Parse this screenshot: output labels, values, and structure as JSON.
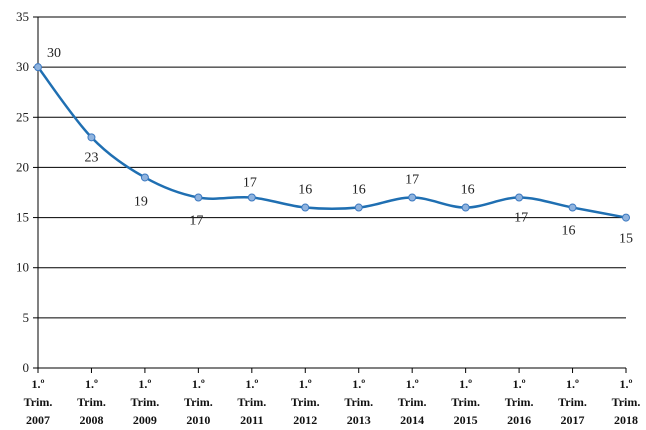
{
  "chart_data": {
    "type": "line",
    "title": "",
    "xlabel": "",
    "ylabel": "",
    "ylim": [
      0,
      35
    ],
    "y_ticks": [
      0,
      5,
      10,
      15,
      20,
      25,
      30,
      35
    ],
    "grid": "horizontal",
    "legend": "none",
    "smooth": true,
    "categories": [
      [
        "1.º",
        "Trim.",
        "2007"
      ],
      [
        "1.º",
        "Trim.",
        "2008"
      ],
      [
        "1.º",
        "Trim.",
        "2009"
      ],
      [
        "1.º",
        "Trim.",
        "2010"
      ],
      [
        "1.º",
        "Trim.",
        "2011"
      ],
      [
        "1.º",
        "Trim.",
        "2012"
      ],
      [
        "1.º",
        "Trim.",
        "2013"
      ],
      [
        "1.º",
        "Trim.",
        "2014"
      ],
      [
        "1.º",
        "Trim.",
        "2015"
      ],
      [
        "1.º",
        "Trim.",
        "2016"
      ],
      [
        "1.º",
        "Trim.",
        "2017"
      ],
      [
        "1.º",
        "Trim.",
        "2018"
      ]
    ],
    "series": [
      {
        "values": [
          30,
          23,
          19,
          17,
          17,
          16,
          16,
          17,
          16,
          17,
          16,
          15
        ],
        "data_labels": [
          "30",
          "23",
          "19",
          "17",
          "17",
          "16",
          "16",
          "17",
          "16",
          "17",
          "16",
          "15"
        ]
      }
    ],
    "colors": {
      "line": "#1f6fb2",
      "marker_fill": "#8fb3de",
      "marker_stroke": "#3b78c0",
      "grid": "#000000",
      "axis": "#000000"
    }
  }
}
